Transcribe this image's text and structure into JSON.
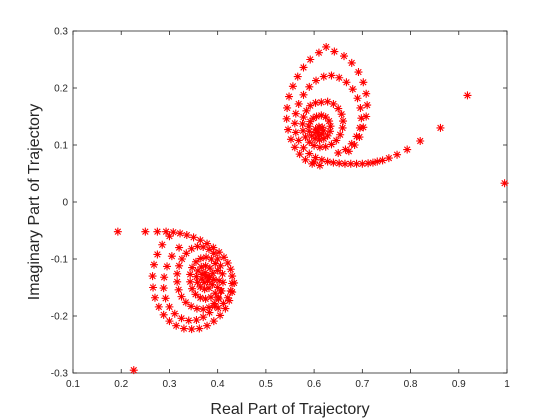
{
  "chart_data": {
    "type": "scatter",
    "title": "",
    "xlabel": "Real Part of Trajectory",
    "ylabel": "Imaginary Part of Trajectory",
    "xlim": [
      0.1,
      1.0
    ],
    "ylim": [
      -0.3,
      0.3
    ],
    "xticks": [
      "0.1",
      "0.2",
      "0.3",
      "0.4",
      "0.5",
      "0.6",
      "0.7",
      "0.8",
      "0.9",
      "1"
    ],
    "yticks": [
      "-0.3",
      "-0.2",
      "-0.1",
      "0",
      "0.1",
      "0.2",
      "0.3"
    ],
    "xtick_values": [
      0.1,
      0.2,
      0.3,
      0.4,
      0.5,
      0.6,
      0.7,
      0.8,
      0.9,
      1.0
    ],
    "ytick_values": [
      -0.3,
      -0.2,
      -0.1,
      0.0,
      0.1,
      0.2,
      0.3
    ],
    "marker": "asterisk",
    "color": "#ff0000",
    "grid": false,
    "series": [
      {
        "points": [
          [
            0.995,
            0.033
          ],
          [
            0.918,
            0.187
          ],
          [
            0.862,
            0.13
          ],
          [
            0.82,
            0.107
          ],
          [
            0.793,
            0.092
          ],
          [
            0.772,
            0.083
          ],
          [
            0.755,
            0.077
          ],
          [
            0.742,
            0.073
          ],
          [
            0.731,
            0.071
          ],
          [
            0.722,
            0.069
          ],
          [
            0.712,
            0.068
          ],
          [
            0.7,
            0.067
          ],
          [
            0.688,
            0.067
          ],
          [
            0.676,
            0.067
          ],
          [
            0.664,
            0.067
          ],
          [
            0.652,
            0.068
          ],
          [
            0.64,
            0.069
          ],
          [
            0.628,
            0.071
          ],
          [
            0.616,
            0.074
          ],
          [
            0.603,
            0.078
          ],
          [
            0.59,
            0.085
          ],
          [
            0.578,
            0.095
          ],
          [
            0.568,
            0.108
          ],
          [
            0.562,
            0.122
          ],
          [
            0.56,
            0.138
          ],
          [
            0.562,
            0.155
          ],
          [
            0.568,
            0.172
          ],
          [
            0.578,
            0.188
          ],
          [
            0.59,
            0.202
          ],
          [
            0.604,
            0.213
          ],
          [
            0.62,
            0.22
          ],
          [
            0.636,
            0.222
          ],
          [
            0.652,
            0.218
          ],
          [
            0.667,
            0.21
          ],
          [
            0.68,
            0.198
          ],
          [
            0.69,
            0.182
          ],
          [
            0.696,
            0.165
          ],
          [
            0.698,
            0.147
          ],
          [
            0.695,
            0.13
          ],
          [
            0.688,
            0.115
          ],
          [
            0.678,
            0.102
          ],
          [
            0.665,
            0.092
          ],
          [
            0.65,
            0.086
          ],
          [
            0.625,
            0.272
          ],
          [
            0.61,
            0.262
          ],
          [
            0.592,
            0.25
          ],
          [
            0.578,
            0.236
          ],
          [
            0.566,
            0.22
          ],
          [
            0.556,
            0.203
          ],
          [
            0.548,
            0.185
          ],
          [
            0.544,
            0.165
          ],
          [
            0.543,
            0.146
          ],
          [
            0.546,
            0.127
          ],
          [
            0.552,
            0.11
          ],
          [
            0.56,
            0.096
          ],
          [
            0.57,
            0.084
          ],
          [
            0.582,
            0.074
          ],
          [
            0.596,
            0.067
          ],
          [
            0.612,
            0.064
          ],
          [
            0.6,
            0.07
          ],
          [
            0.642,
            0.264
          ],
          [
            0.662,
            0.256
          ],
          [
            0.678,
            0.244
          ],
          [
            0.692,
            0.228
          ],
          [
            0.702,
            0.21
          ],
          [
            0.708,
            0.19
          ],
          [
            0.71,
            0.17
          ],
          [
            0.708,
            0.15
          ],
          [
            0.702,
            0.131
          ],
          [
            0.694,
            0.114
          ],
          [
            0.684,
            0.1
          ],
          [
            0.672,
            0.089
          ],
          [
            0.615,
            0.175
          ],
          [
            0.628,
            0.176
          ],
          [
            0.64,
            0.172
          ],
          [
            0.65,
            0.164
          ],
          [
            0.657,
            0.154
          ],
          [
            0.66,
            0.142
          ],
          [
            0.659,
            0.13
          ],
          [
            0.654,
            0.118
          ],
          [
            0.646,
            0.108
          ],
          [
            0.636,
            0.101
          ],
          [
            0.624,
            0.097
          ],
          [
            0.612,
            0.096
          ],
          [
            0.6,
            0.099
          ],
          [
            0.59,
            0.105
          ],
          [
            0.582,
            0.114
          ],
          [
            0.577,
            0.125
          ],
          [
            0.576,
            0.137
          ],
          [
            0.578,
            0.149
          ],
          [
            0.584,
            0.16
          ],
          [
            0.592,
            0.169
          ],
          [
            0.603,
            0.174
          ],
          [
            0.605,
            0.15
          ],
          [
            0.615,
            0.152
          ],
          [
            0.624,
            0.149
          ],
          [
            0.631,
            0.142
          ],
          [
            0.634,
            0.133
          ],
          [
            0.633,
            0.124
          ],
          [
            0.628,
            0.116
          ],
          [
            0.62,
            0.111
          ],
          [
            0.611,
            0.109
          ],
          [
            0.602,
            0.111
          ],
          [
            0.595,
            0.116
          ],
          [
            0.59,
            0.124
          ],
          [
            0.589,
            0.133
          ],
          [
            0.592,
            0.141
          ],
          [
            0.598,
            0.147
          ],
          [
            0.61,
            0.132
          ],
          [
            0.617,
            0.131
          ],
          [
            0.62,
            0.125
          ],
          [
            0.616,
            0.119
          ],
          [
            0.609,
            0.118
          ],
          [
            0.604,
            0.122
          ],
          [
            0.603,
            0.128
          ],
          [
            0.608,
            0.126
          ],
          [
            0.193,
            -0.052
          ],
          [
            0.226,
            -0.295
          ],
          [
            0.25,
            -0.052
          ],
          [
            0.275,
            -0.052
          ],
          [
            0.293,
            -0.052
          ],
          [
            0.308,
            -0.053
          ],
          [
            0.322,
            -0.055
          ],
          [
            0.336,
            -0.058
          ],
          [
            0.35,
            -0.062
          ],
          [
            0.364,
            -0.067
          ],
          [
            0.378,
            -0.073
          ],
          [
            0.391,
            -0.08
          ],
          [
            0.403,
            -0.088
          ],
          [
            0.413,
            -0.097
          ],
          [
            0.421,
            -0.107
          ],
          [
            0.427,
            -0.118
          ],
          [
            0.43,
            -0.13
          ],
          [
            0.43,
            -0.143
          ],
          [
            0.427,
            -0.156
          ],
          [
            0.421,
            -0.168
          ],
          [
            0.412,
            -0.178
          ],
          [
            0.401,
            -0.186
          ],
          [
            0.3,
            -0.06
          ],
          [
            0.285,
            -0.075
          ],
          [
            0.275,
            -0.092
          ],
          [
            0.268,
            -0.11
          ],
          [
            0.265,
            -0.13
          ],
          [
            0.266,
            -0.15
          ],
          [
            0.27,
            -0.168
          ],
          [
            0.278,
            -0.184
          ],
          [
            0.288,
            -0.198
          ],
          [
            0.3,
            -0.209
          ],
          [
            0.314,
            -0.217
          ],
          [
            0.33,
            -0.222
          ],
          [
            0.346,
            -0.223
          ],
          [
            0.362,
            -0.222
          ],
          [
            0.378,
            -0.217
          ],
          [
            0.392,
            -0.209
          ],
          [
            0.405,
            -0.199
          ],
          [
            0.416,
            -0.187
          ],
          [
            0.424,
            -0.173
          ],
          [
            0.43,
            -0.158
          ],
          [
            0.434,
            -0.142
          ],
          [
            0.32,
            -0.08
          ],
          [
            0.305,
            -0.095
          ],
          [
            0.295,
            -0.113
          ],
          [
            0.289,
            -0.132
          ],
          [
            0.288,
            -0.151
          ],
          [
            0.292,
            -0.169
          ],
          [
            0.3,
            -0.184
          ],
          [
            0.311,
            -0.196
          ],
          [
            0.325,
            -0.204
          ],
          [
            0.34,
            -0.208
          ],
          [
            0.356,
            -0.207
          ],
          [
            0.37,
            -0.202
          ],
          [
            0.383,
            -0.194
          ],
          [
            0.394,
            -0.183
          ],
          [
            0.402,
            -0.17
          ],
          [
            0.408,
            -0.156
          ],
          [
            0.411,
            -0.141
          ],
          [
            0.41,
            -0.126
          ],
          [
            0.406,
            -0.112
          ],
          [
            0.4,
            -0.1
          ],
          [
            0.392,
            -0.09
          ],
          [
            0.382,
            -0.083
          ],
          [
            0.37,
            -0.079
          ],
          [
            0.358,
            -0.078
          ],
          [
            0.346,
            -0.082
          ],
          [
            0.335,
            -0.09
          ],
          [
            0.326,
            -0.1
          ],
          [
            0.32,
            -0.112
          ],
          [
            0.316,
            -0.126
          ],
          [
            0.316,
            -0.14
          ],
          [
            0.319,
            -0.154
          ],
          [
            0.325,
            -0.166
          ],
          [
            0.334,
            -0.176
          ],
          [
            0.345,
            -0.183
          ],
          [
            0.357,
            -0.187
          ],
          [
            0.37,
            -0.188
          ],
          [
            0.382,
            -0.185
          ],
          [
            0.393,
            -0.178
          ],
          [
            0.401,
            -0.168
          ],
          [
            0.406,
            -0.156
          ],
          [
            0.4,
            -0.12
          ],
          [
            0.395,
            -0.108
          ],
          [
            0.387,
            -0.1
          ],
          [
            0.376,
            -0.097
          ],
          [
            0.365,
            -0.099
          ],
          [
            0.355,
            -0.105
          ],
          [
            0.347,
            -0.115
          ],
          [
            0.343,
            -0.127
          ],
          [
            0.343,
            -0.14
          ],
          [
            0.347,
            -0.152
          ],
          [
            0.354,
            -0.162
          ],
          [
            0.364,
            -0.168
          ],
          [
            0.375,
            -0.17
          ],
          [
            0.386,
            -0.167
          ],
          [
            0.395,
            -0.16
          ],
          [
            0.4,
            -0.15
          ],
          [
            0.403,
            -0.138
          ],
          [
            0.39,
            -0.125
          ],
          [
            0.384,
            -0.116
          ],
          [
            0.375,
            -0.112
          ],
          [
            0.366,
            -0.114
          ],
          [
            0.359,
            -0.121
          ],
          [
            0.356,
            -0.131
          ],
          [
            0.358,
            -0.141
          ],
          [
            0.364,
            -0.149
          ],
          [
            0.373,
            -0.153
          ],
          [
            0.382,
            -0.151
          ],
          [
            0.389,
            -0.145
          ],
          [
            0.392,
            -0.136
          ],
          [
            0.38,
            -0.13
          ],
          [
            0.374,
            -0.124
          ],
          [
            0.368,
            -0.127
          ],
          [
            0.367,
            -0.135
          ],
          [
            0.372,
            -0.141
          ],
          [
            0.379,
            -0.139
          ],
          [
            0.383,
            -0.133
          ],
          [
            0.376,
            -0.132
          ]
        ]
      }
    ]
  }
}
